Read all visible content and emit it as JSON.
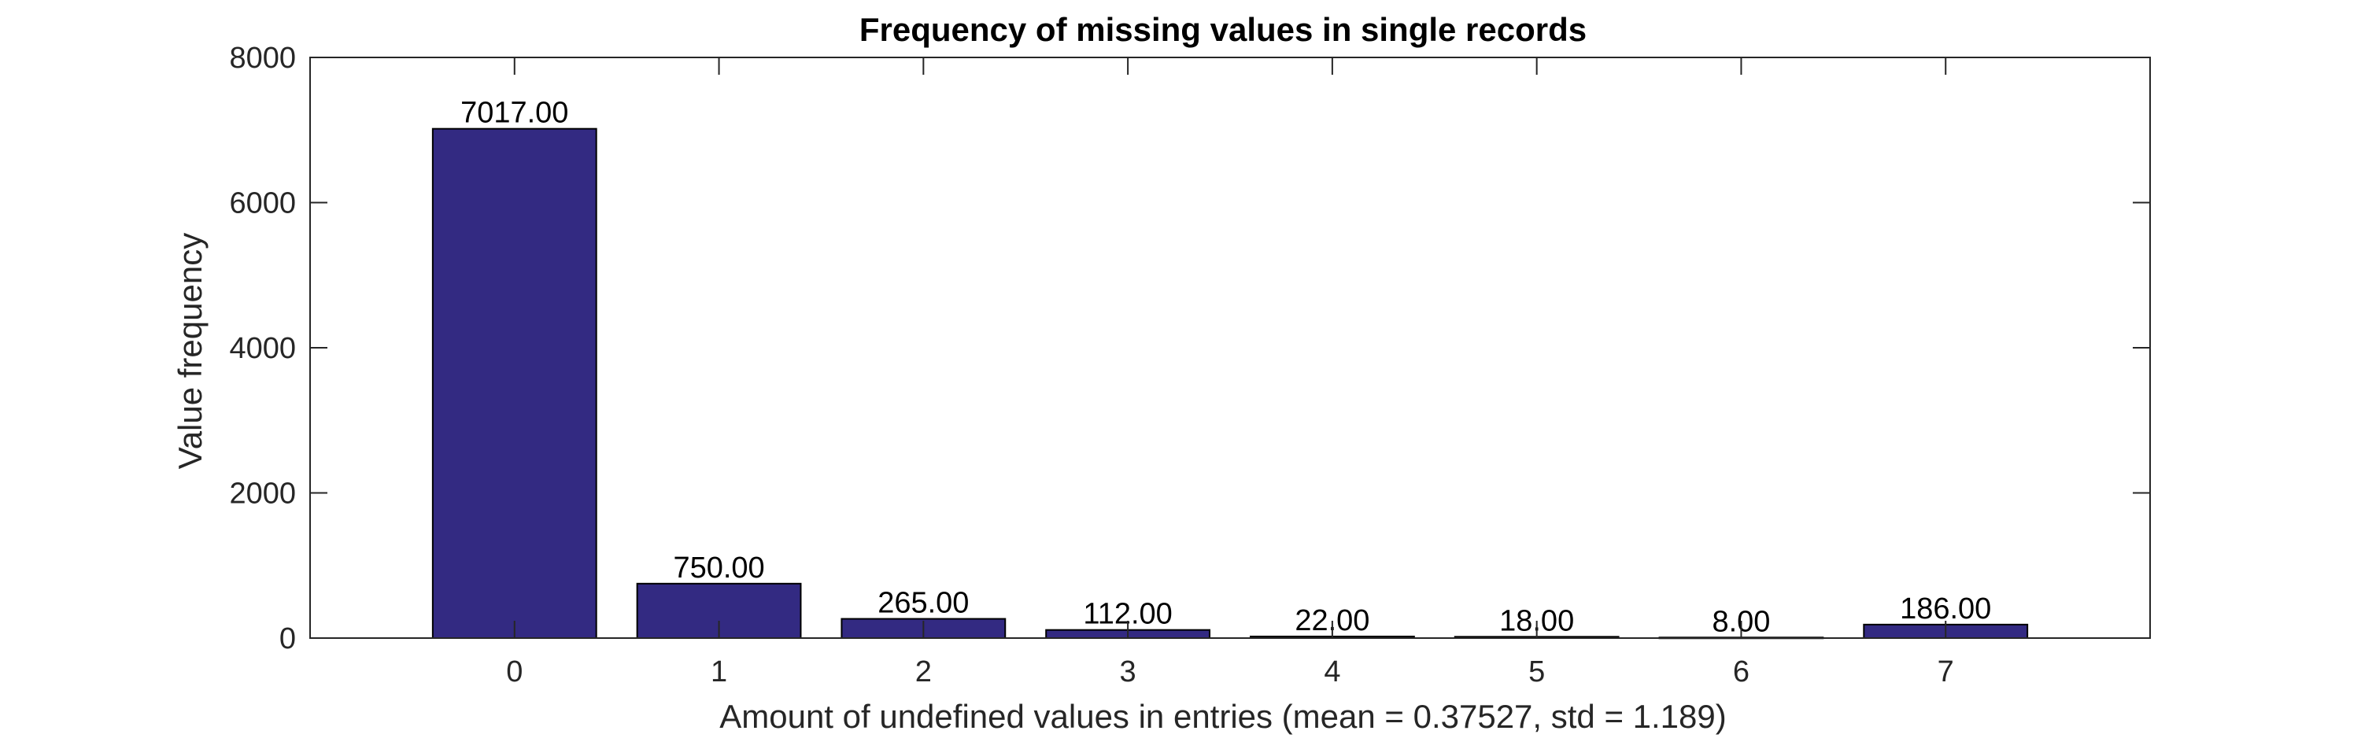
{
  "colors": {
    "bar_fill": "#332a82",
    "bar_edge": "#000000",
    "axes": "#262626",
    "background": "#ffffff"
  },
  "chart_data": {
    "type": "bar",
    "title": "Frequency of missing values in single records",
    "xlabel": "Amount of undefined values in entries (mean = 0.37527, std = 1.189)",
    "ylabel": "Value frequency",
    "categories": [
      "0",
      "1",
      "2",
      "3",
      "4",
      "5",
      "6",
      "7"
    ],
    "values": [
      7017,
      750,
      265,
      112,
      22,
      18,
      8,
      186
    ],
    "data_labels": [
      "7017.00",
      "750.00",
      "265.00",
      "112.00",
      "22.00",
      "18.00",
      "8.00",
      "186.00"
    ],
    "xlim": [
      -1,
      8
    ],
    "ylim": [
      0,
      8000
    ],
    "yticks": [
      0,
      2000,
      4000,
      6000,
      8000
    ],
    "ytick_labels": [
      "0",
      "2000",
      "4000",
      "6000",
      "8000"
    ],
    "grid": false,
    "legend": "none"
  }
}
